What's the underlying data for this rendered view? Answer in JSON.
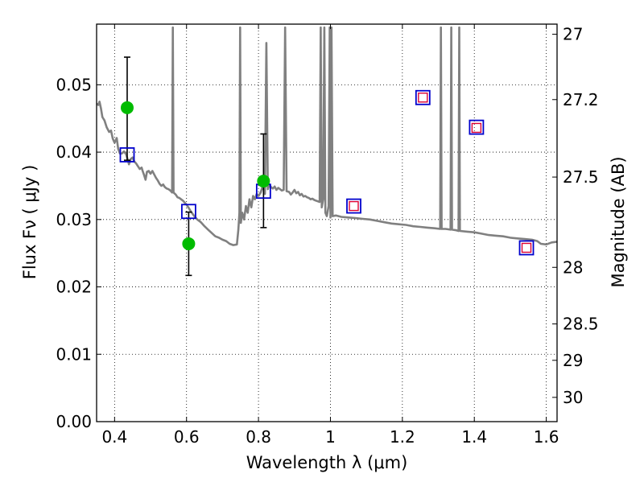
{
  "chart_data": {
    "type": "scatter",
    "title": "",
    "xlabel": "Wavelength  λ (μm)",
    "ylabel": "Flux  Fν  ( μJy )",
    "ylabel_right": "Magnitude (AB)",
    "xlim": [
      0.35,
      1.63
    ],
    "ylim": [
      0.0,
      0.059
    ],
    "grid": true,
    "x_ticks": [
      0.4,
      0.6,
      0.8,
      1.0,
      1.2,
      1.4,
      1.6
    ],
    "x_tick_labels": [
      "0.4",
      "0.6",
      "0.8",
      "1",
      "1.2",
      "1.4",
      "1.6"
    ],
    "y_ticks": [
      0.0,
      0.01,
      0.02,
      0.03,
      0.04,
      0.05
    ],
    "y_tick_labels": [
      "0.00",
      "0.01",
      "0.02",
      "0.03",
      "0.04",
      "0.05"
    ],
    "right_ticks": [
      {
        "label": "27",
        "flux": 0.0575
      },
      {
        "label": "27.2",
        "flux": 0.0478
      },
      {
        "label": "27.5",
        "flux": 0.0363
      },
      {
        "label": "28",
        "flux": 0.0229
      },
      {
        "label": "28.5",
        "flux": 0.0145
      },
      {
        "label": "29",
        "flux": 0.0091
      },
      {
        "label": "30",
        "flux": 0.0036
      }
    ],
    "colors": {
      "model": "#808080",
      "observed": "#00bb00",
      "model_photometry": "#0000cc",
      "upper_marker": "#dd0033",
      "errorbar": "#000000"
    },
    "series": [
      {
        "marker": "line",
        "points": [
          [
            0.35,
            0.0472
          ],
          [
            0.355,
            0.047
          ],
          [
            0.358,
            0.0475
          ],
          [
            0.362,
            0.0465
          ],
          [
            0.366,
            0.0452
          ],
          [
            0.372,
            0.0447
          ],
          [
            0.378,
            0.0437
          ],
          [
            0.385,
            0.043
          ],
          [
            0.39,
            0.0432
          ],
          [
            0.395,
            0.042
          ],
          [
            0.4,
            0.0414
          ],
          [
            0.406,
            0.0421
          ],
          [
            0.41,
            0.0405
          ],
          [
            0.415,
            0.0398
          ],
          [
            0.42,
            0.0398
          ],
          [
            0.426,
            0.0401
          ],
          [
            0.432,
            0.0397
          ],
          [
            0.437,
            0.0388
          ],
          [
            0.44,
            0.0382
          ],
          [
            0.445,
            0.039
          ],
          [
            0.45,
            0.0392
          ],
          [
            0.455,
            0.0386
          ],
          [
            0.46,
            0.0383
          ],
          [
            0.465,
            0.0379
          ],
          [
            0.47,
            0.0375
          ],
          [
            0.475,
            0.0377
          ],
          [
            0.478,
            0.0372
          ],
          [
            0.482,
            0.0366
          ],
          [
            0.486,
            0.0359
          ],
          [
            0.49,
            0.0371
          ],
          [
            0.495,
            0.0372
          ],
          [
            0.5,
            0.0368
          ],
          [
            0.505,
            0.0372
          ],
          [
            0.51,
            0.0367
          ],
          [
            0.515,
            0.0362
          ],
          [
            0.52,
            0.0358
          ],
          [
            0.525,
            0.0353
          ],
          [
            0.53,
            0.035
          ],
          [
            0.535,
            0.0352
          ],
          [
            0.54,
            0.0348
          ],
          [
            0.545,
            0.0346
          ],
          [
            0.55,
            0.0345
          ],
          [
            0.555,
            0.0343
          ],
          [
            0.56,
            0.034
          ],
          [
            0.562,
            0.0585
          ],
          [
            0.564,
            0.034
          ],
          [
            0.57,
            0.0337
          ],
          [
            0.575,
            0.0333
          ],
          [
            0.58,
            0.0332
          ],
          [
            0.585,
            0.033
          ],
          [
            0.59,
            0.0328
          ],
          [
            0.595,
            0.0325
          ],
          [
            0.6,
            0.0322
          ],
          [
            0.605,
            0.0318
          ],
          [
            0.612,
            0.0312
          ],
          [
            0.62,
            0.0306
          ],
          [
            0.63,
            0.03
          ],
          [
            0.64,
            0.0296
          ],
          [
            0.65,
            0.029
          ],
          [
            0.66,
            0.0285
          ],
          [
            0.67,
            0.028
          ],
          [
            0.68,
            0.0275
          ],
          [
            0.69,
            0.0273
          ],
          [
            0.7,
            0.027
          ],
          [
            0.71,
            0.0268
          ],
          [
            0.72,
            0.0264
          ],
          [
            0.73,
            0.0262
          ],
          [
            0.74,
            0.0263
          ],
          [
            0.744,
            0.0285
          ],
          [
            0.747,
            0.031
          ],
          [
            0.749,
            0.0585
          ],
          [
            0.751,
            0.0295
          ],
          [
            0.755,
            0.031
          ],
          [
            0.76,
            0.03
          ],
          [
            0.765,
            0.032
          ],
          [
            0.77,
            0.031
          ],
          [
            0.775,
            0.033
          ],
          [
            0.78,
            0.0318
          ],
          [
            0.785,
            0.0335
          ],
          [
            0.79,
            0.033
          ],
          [
            0.795,
            0.0338
          ],
          [
            0.8,
            0.0335
          ],
          [
            0.806,
            0.034
          ],
          [
            0.812,
            0.035
          ],
          [
            0.818,
            0.0338
          ],
          [
            0.822,
            0.0562
          ],
          [
            0.826,
            0.0345
          ],
          [
            0.83,
            0.0352
          ],
          [
            0.835,
            0.0348
          ],
          [
            0.84,
            0.0346
          ],
          [
            0.845,
            0.0349
          ],
          [
            0.85,
            0.0344
          ],
          [
            0.855,
            0.0347
          ],
          [
            0.86,
            0.0345
          ],
          [
            0.865,
            0.0343
          ],
          [
            0.87,
            0.0344
          ],
          [
            0.874,
            0.0585
          ],
          [
            0.878,
            0.0342
          ],
          [
            0.885,
            0.0341
          ],
          [
            0.89,
            0.0337
          ],
          [
            0.895,
            0.034
          ],
          [
            0.9,
            0.0344
          ],
          [
            0.905,
            0.0339
          ],
          [
            0.91,
            0.0341
          ],
          [
            0.915,
            0.0336
          ],
          [
            0.92,
            0.0338
          ],
          [
            0.925,
            0.0334
          ],
          [
            0.93,
            0.0335
          ],
          [
            0.935,
            0.0333
          ],
          [
            0.94,
            0.0332
          ],
          [
            0.945,
            0.033
          ],
          [
            0.95,
            0.0331
          ],
          [
            0.955,
            0.0329
          ],
          [
            0.96,
            0.0328
          ],
          [
            0.965,
            0.0327
          ],
          [
            0.97,
            0.0326
          ],
          [
            0.973,
            0.0585
          ],
          [
            0.976,
            0.0318
          ],
          [
            0.98,
            0.033
          ],
          [
            0.983,
            0.0585
          ],
          [
            0.986,
            0.031
          ],
          [
            0.99,
            0.0305
          ],
          [
            0.995,
            0.032
          ],
          [
            0.998,
            0.0585
          ],
          [
            1.0,
            0.0303
          ],
          [
            1.003,
            0.0585
          ],
          [
            1.006,
            0.0305
          ],
          [
            1.015,
            0.0306
          ],
          [
            1.03,
            0.0304
          ],
          [
            1.05,
            0.0303
          ],
          [
            1.07,
            0.0302
          ],
          [
            1.09,
            0.0301
          ],
          [
            1.11,
            0.03
          ],
          [
            1.13,
            0.0298
          ],
          [
            1.15,
            0.0296
          ],
          [
            1.17,
            0.0294
          ],
          [
            1.19,
            0.0293
          ],
          [
            1.21,
            0.0292
          ],
          [
            1.23,
            0.029
          ],
          [
            1.25,
            0.0289
          ],
          [
            1.27,
            0.0288
          ],
          [
            1.29,
            0.0287
          ],
          [
            1.305,
            0.0286
          ],
          [
            1.307,
            0.0585
          ],
          [
            1.309,
            0.0286
          ],
          [
            1.32,
            0.0286
          ],
          [
            1.334,
            0.0285
          ],
          [
            1.336,
            0.0585
          ],
          [
            1.338,
            0.0285
          ],
          [
            1.35,
            0.0284
          ],
          [
            1.356,
            0.0283
          ],
          [
            1.358,
            0.0585
          ],
          [
            1.36,
            0.0283
          ],
          [
            1.38,
            0.0282
          ],
          [
            1.4,
            0.0281
          ],
          [
            1.42,
            0.0279
          ],
          [
            1.44,
            0.0277
          ],
          [
            1.46,
            0.0276
          ],
          [
            1.48,
            0.0275
          ],
          [
            1.5,
            0.0273
          ],
          [
            1.52,
            0.0272
          ],
          [
            1.54,
            0.0271
          ],
          [
            1.56,
            0.027
          ],
          [
            1.575,
            0.0268
          ],
          [
            1.585,
            0.0264
          ],
          [
            1.6,
            0.0263
          ],
          [
            1.615,
            0.0266
          ],
          [
            1.63,
            0.0267
          ]
        ]
      },
      {
        "marker": "filled-circle",
        "points": [
          {
            "x": 0.435,
            "y": 0.0466,
            "err_low": 0.0078,
            "err_high": 0.0075
          },
          {
            "x": 0.606,
            "y": 0.0264,
            "err_low": 0.0047,
            "err_high": 0.0047
          },
          {
            "x": 0.814,
            "y": 0.0357,
            "err_low": 0.0069,
            "err_high": 0.007
          }
        ]
      },
      {
        "marker": "open-square-blue",
        "points": [
          {
            "x": 0.435,
            "y": 0.0396
          },
          {
            "x": 0.606,
            "y": 0.0312
          },
          {
            "x": 0.814,
            "y": 0.0342
          },
          {
            "x": 1.065,
            "y": 0.032
          },
          {
            "x": 1.257,
            "y": 0.0481
          },
          {
            "x": 1.406,
            "y": 0.0437
          },
          {
            "x": 1.545,
            "y": 0.0258
          }
        ]
      },
      {
        "marker": "open-square-red",
        "points": [
          {
            "x": 1.065,
            "y": 0.032
          },
          {
            "x": 1.257,
            "y": 0.0481
          },
          {
            "x": 1.406,
            "y": 0.0436
          },
          {
            "x": 1.545,
            "y": 0.0258
          }
        ]
      }
    ]
  }
}
